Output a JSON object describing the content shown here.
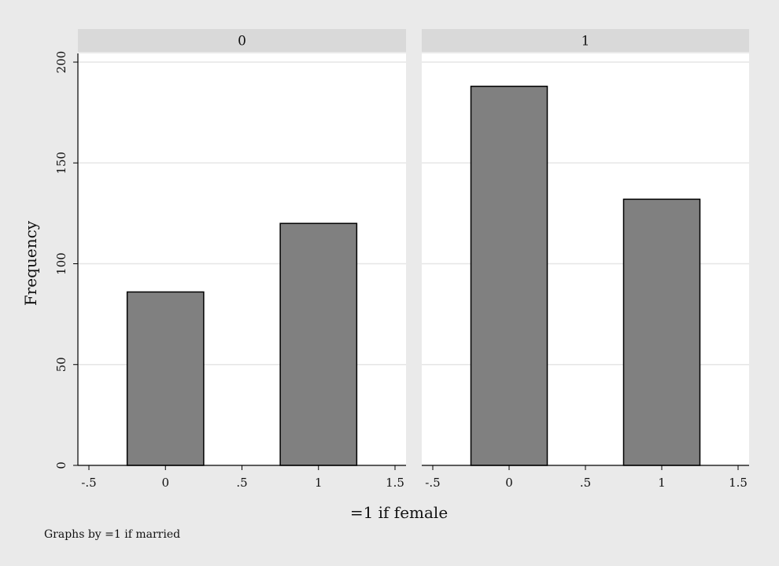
{
  "chart_data": {
    "type": "bar",
    "by_variable_note": "Graphs by =1 if married",
    "xlabel": "=1 if female",
    "ylabel": "Frequency",
    "xlim": [
      -0.5,
      1.5
    ],
    "ylim": [
      0,
      200
    ],
    "x_ticks": [
      "-.5",
      "0",
      ".5",
      "1",
      "1.5"
    ],
    "x_tick_values": [
      -0.5,
      0,
      0.5,
      1,
      1.5
    ],
    "y_ticks": [
      "0",
      "50",
      "100",
      "150",
      "200"
    ],
    "y_tick_values": [
      0,
      50,
      100,
      150,
      200
    ],
    "bar_width": 0.5,
    "grid": true,
    "panels": [
      {
        "label": "0",
        "bars": [
          {
            "x": 0,
            "value": 86
          },
          {
            "x": 1,
            "value": 120
          }
        ]
      },
      {
        "label": "1",
        "bars": [
          {
            "x": 0,
            "value": 188
          },
          {
            "x": 1,
            "value": 132
          }
        ]
      }
    ],
    "colors": {
      "outer_background": "#eaeaea",
      "plot_background": "#ffffff",
      "strip_background": "#d9d9d9",
      "bar_fill": "#808080",
      "bar_stroke": "#000000",
      "grid": "#e6e6e6"
    }
  }
}
